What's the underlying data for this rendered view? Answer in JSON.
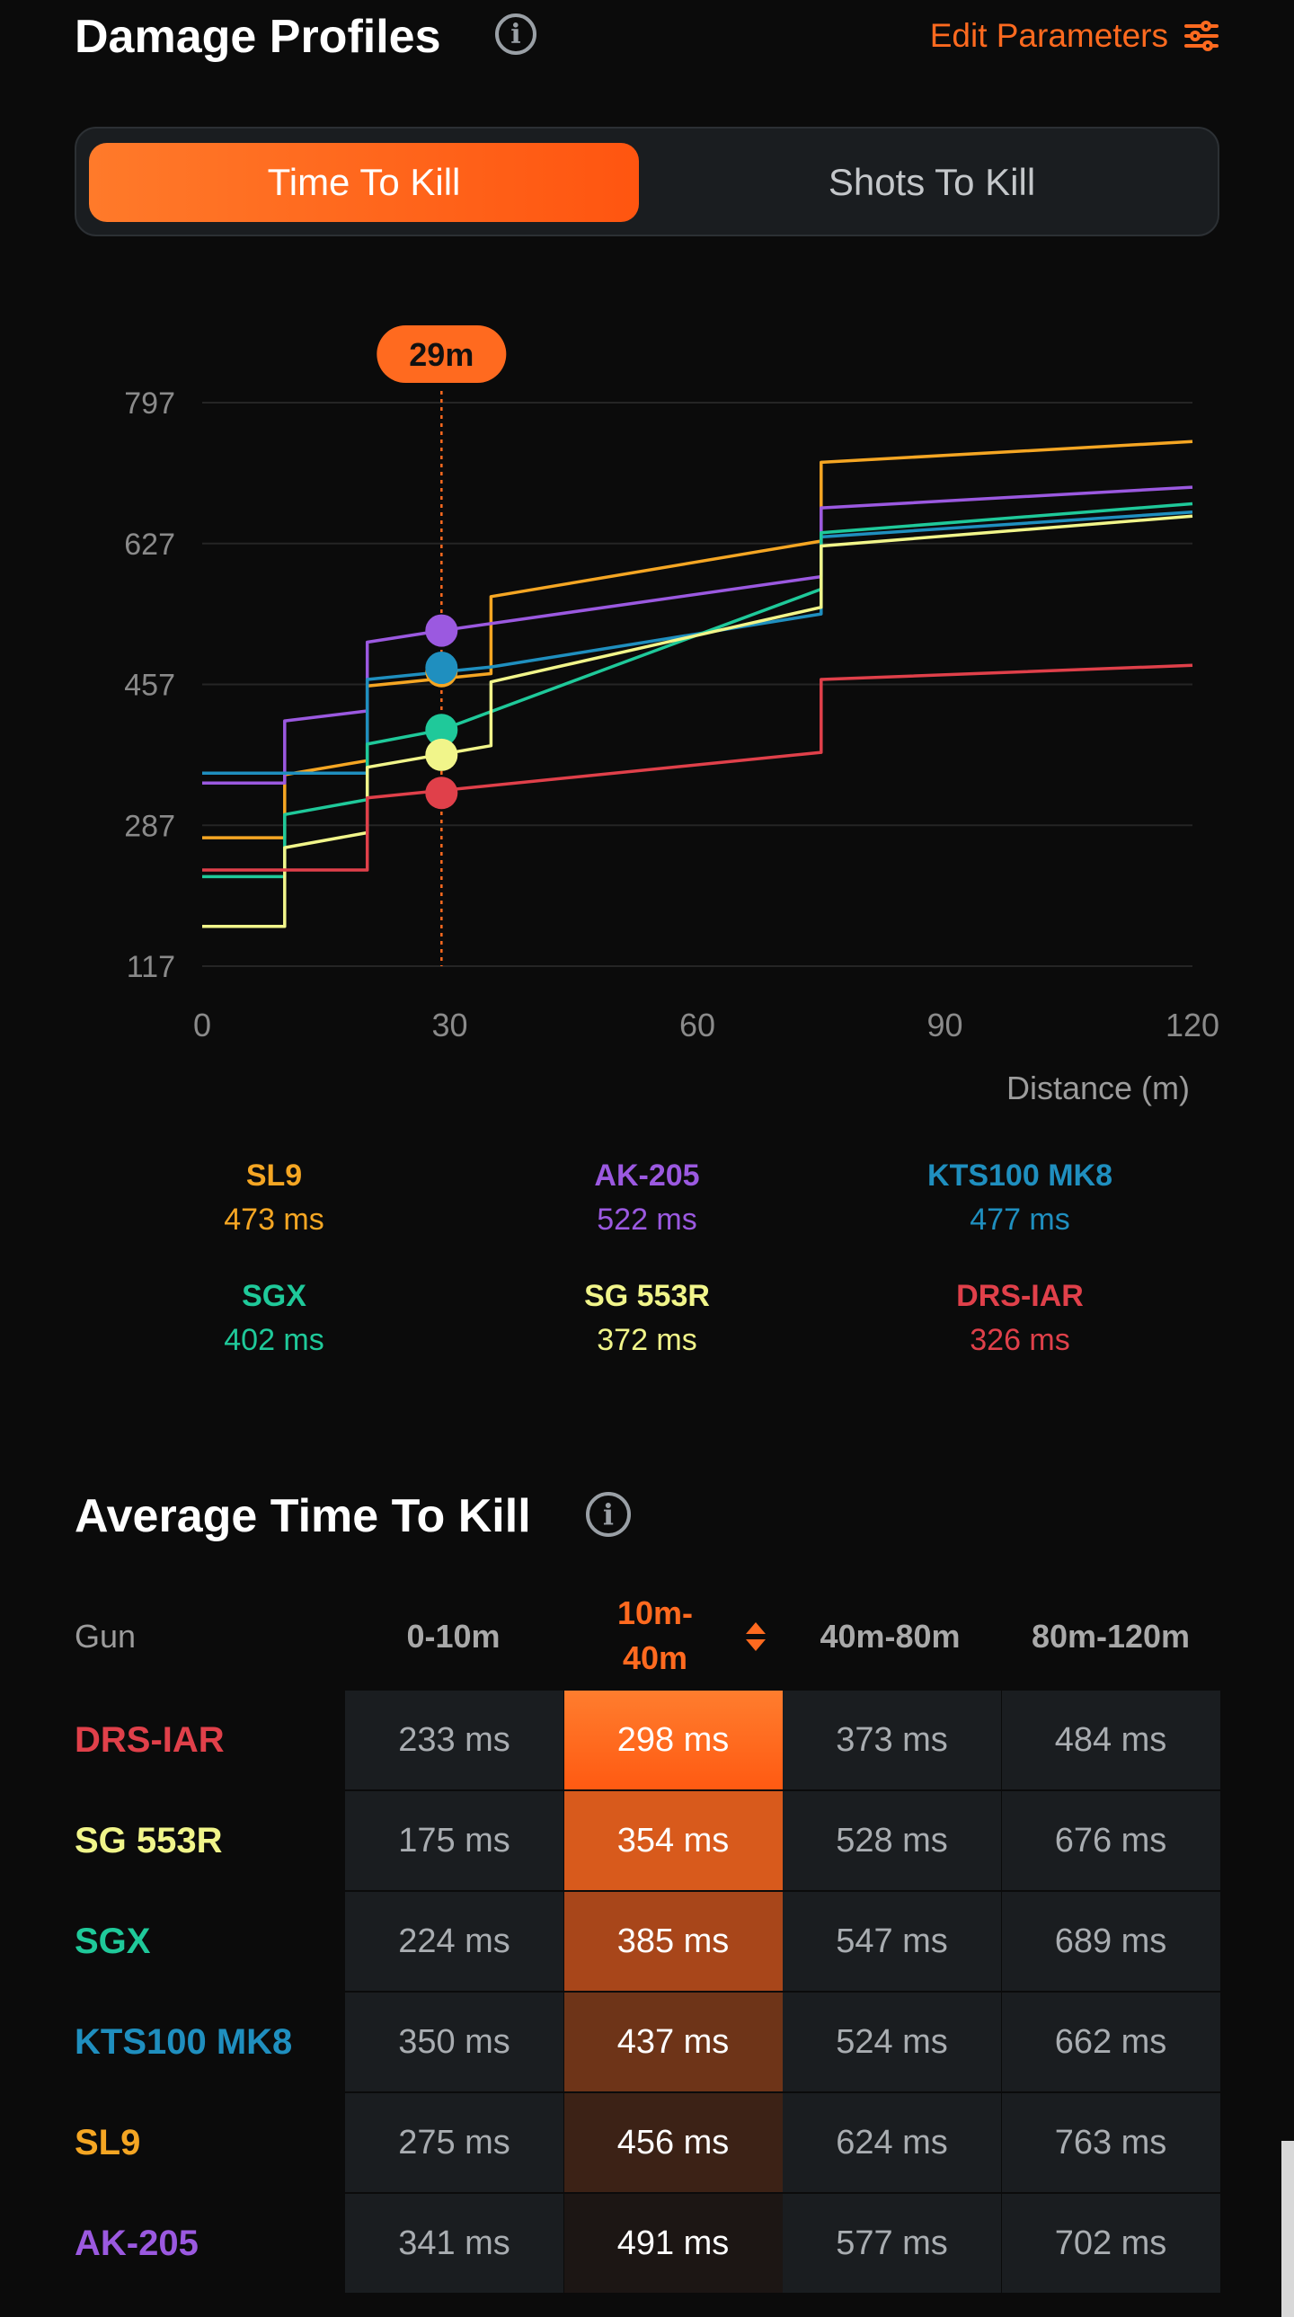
{
  "header": {
    "title": "Damage Profiles",
    "info_glyph": "i",
    "edit_label": "Edit Parameters",
    "edit_icon": "sliders-icon",
    "accent": "#ff6a1f"
  },
  "tabs": [
    {
      "label": "Time To Kill",
      "active": true
    },
    {
      "label": "Shots To Kill",
      "active": false
    }
  ],
  "chart_data": {
    "type": "line",
    "marker_label": "29m",
    "marker_x": 29,
    "xlabel": "Distance (m)",
    "xticks": [
      0,
      30,
      60,
      90,
      120
    ],
    "yticks": [
      797,
      627,
      457,
      287,
      117
    ],
    "xlim": [
      0,
      120
    ],
    "ylim": [
      117,
      797
    ],
    "series": [
      {
        "name": "SL9",
        "color": "#f5a623",
        "marker_value": 473,
        "points": [
          [
            0,
            272
          ],
          [
            10,
            272
          ],
          [
            10,
            348
          ],
          [
            20,
            365
          ],
          [
            20,
            455
          ],
          [
            35,
            470
          ],
          [
            35,
            563
          ],
          [
            75,
            630
          ],
          [
            75,
            725
          ],
          [
            120,
            750
          ]
        ]
      },
      {
        "name": "AK-205",
        "color": "#9b59e0",
        "marker_value": 522,
        "points": [
          [
            0,
            338
          ],
          [
            10,
            338
          ],
          [
            10,
            413
          ],
          [
            20,
            425
          ],
          [
            20,
            508
          ],
          [
            29,
            522
          ],
          [
            75,
            587
          ],
          [
            75,
            670
          ],
          [
            120,
            695
          ]
        ]
      },
      {
        "name": "KTS100 MK8",
        "color": "#1f8fbf",
        "marker_value": 477,
        "points": [
          [
            0,
            350
          ],
          [
            20,
            350
          ],
          [
            20,
            463
          ],
          [
            35,
            478
          ],
          [
            75,
            542
          ],
          [
            75,
            635
          ],
          [
            120,
            665
          ]
        ]
      },
      {
        "name": "SGX",
        "color": "#1fc99a",
        "marker_value": 402,
        "points": [
          [
            0,
            225
          ],
          [
            10,
            225
          ],
          [
            10,
            300
          ],
          [
            20,
            318
          ],
          [
            20,
            385
          ],
          [
            29,
            402
          ],
          [
            75,
            572
          ],
          [
            75,
            640
          ],
          [
            120,
            675
          ]
        ]
      },
      {
        "name": "SG 553R",
        "color": "#f1f58a",
        "marker_value": 372,
        "points": [
          [
            0,
            165
          ],
          [
            10,
            165
          ],
          [
            10,
            260
          ],
          [
            20,
            278
          ],
          [
            20,
            357
          ],
          [
            35,
            383
          ],
          [
            35,
            460
          ],
          [
            75,
            550
          ],
          [
            75,
            624
          ],
          [
            120,
            660
          ]
        ]
      },
      {
        "name": "DRS-IAR",
        "color": "#e0404a",
        "marker_value": 326,
        "points": [
          [
            0,
            233
          ],
          [
            20,
            233
          ],
          [
            20,
            320
          ],
          [
            75,
            375
          ],
          [
            75,
            463
          ],
          [
            120,
            480
          ]
        ]
      }
    ]
  },
  "legend": [
    {
      "name": "SL9",
      "value": "473 ms",
      "color": "#f5a623"
    },
    {
      "name": "AK-205",
      "value": "522 ms",
      "color": "#9b59e0"
    },
    {
      "name": "KTS100 MK8",
      "value": "477 ms",
      "color": "#1f8fbf"
    },
    {
      "name": "SGX",
      "value": "402 ms",
      "color": "#1fc99a"
    },
    {
      "name": "SG 553R",
      "value": "372 ms",
      "color": "#f1f58a"
    },
    {
      "name": "DRS-IAR",
      "value": "326 ms",
      "color": "#e0404a"
    }
  ],
  "average": {
    "title": "Average Time To Kill",
    "info_glyph": "i",
    "headers": {
      "gun": "Gun",
      "c0": "0-10m",
      "c1a": "10m-",
      "c1b": "40m",
      "c2": "40m-80m",
      "c3": "80m-120m"
    },
    "rows": [
      {
        "gun": "DRS-IAR",
        "color": "#e0404a",
        "cells": [
          "233 ms",
          "298 ms",
          "373 ms",
          "484 ms"
        ],
        "hl": "#ff6a1f"
      },
      {
        "gun": "SG 553R",
        "color": "#f1f58a",
        "cells": [
          "175 ms",
          "354 ms",
          "528 ms",
          "676 ms"
        ],
        "hl": "#d85a1c"
      },
      {
        "gun": "SGX",
        "color": "#1fc99a",
        "cells": [
          "224 ms",
          "385 ms",
          "547 ms",
          "689 ms"
        ],
        "hl": "#a8461a"
      },
      {
        "gun": "KTS100 MK8",
        "color": "#1f8fbf",
        "cells": [
          "350 ms",
          "437 ms",
          "524 ms",
          "662 ms"
        ],
        "hl": "#6e3418"
      },
      {
        "gun": "SL9",
        "color": "#f5a623",
        "cells": [
          "275 ms",
          "456 ms",
          "624 ms",
          "763 ms"
        ],
        "hl": "#3c2216"
      },
      {
        "gun": "AK-205",
        "color": "#9b59e0",
        "cells": [
          "341 ms",
          "491 ms",
          "577 ms",
          "702 ms"
        ],
        "hl": "#1c1614"
      }
    ]
  }
}
